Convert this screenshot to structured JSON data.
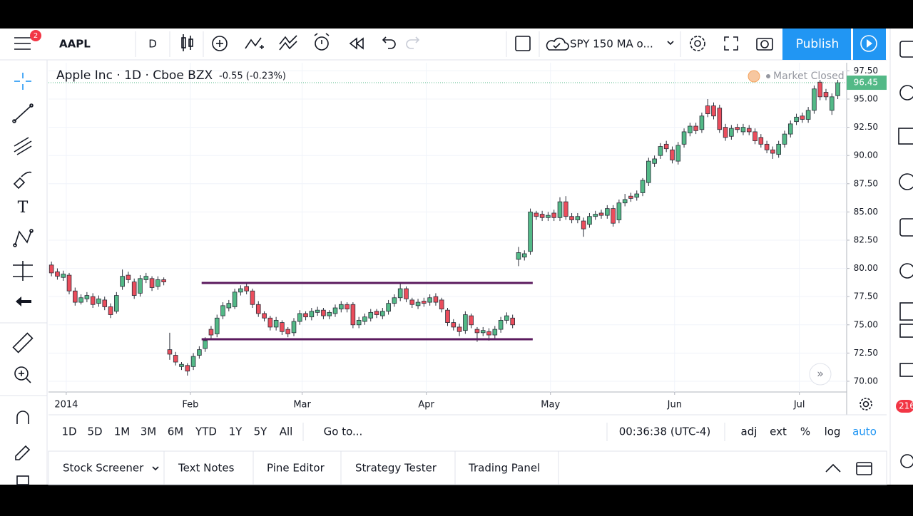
{
  "toolbar": {
    "notification_count": "2",
    "symbol": "AAPL",
    "interval": "D",
    "indicator": "SPY 150 MA o...",
    "publish": "Publish"
  },
  "chart_data": {
    "type": "candlestick",
    "title": "Apple Inc · 1D · Cboe BZX",
    "change": "-0.55 (-0.23%)",
    "status": "Market Closed",
    "last_price": 96.45,
    "up_color": "#53b987",
    "down_color": "#eb4d5c",
    "grid": true,
    "ylim": [
      69.05,
      98.22
    ],
    "yticks": [
      {
        "value": 70,
        "label": "70.00"
      },
      {
        "value": 72.5,
        "label": "72.50"
      },
      {
        "value": 75,
        "label": "75.00"
      },
      {
        "value": 77.5,
        "label": "77.50"
      },
      {
        "value": 80,
        "label": "80.00"
      },
      {
        "value": 82.5,
        "label": "82.50"
      },
      {
        "value": 85,
        "label": "85.00"
      },
      {
        "value": 87.5,
        "label": "87.50"
      },
      {
        "value": 90,
        "label": "90.00"
      },
      {
        "value": 92.5,
        "label": "92.50"
      },
      {
        "value": 95,
        "label": "95.00"
      },
      {
        "value": 97.5,
        "label": "97.50"
      }
    ],
    "xlim": [
      -0.5,
      134.5
    ],
    "xticks": [
      {
        "value": 2.5,
        "label": "2014"
      },
      {
        "value": 23.5,
        "label": "Feb"
      },
      {
        "value": 42.4,
        "label": "Mar"
      },
      {
        "value": 63.4,
        "label": "Apr"
      },
      {
        "value": 84.4,
        "label": "May"
      },
      {
        "value": 105.4,
        "label": "Jun"
      },
      {
        "value": 126.5,
        "label": "Jul"
      }
    ],
    "open": [
      80.3,
      79.7,
      79.2,
      79.4,
      78.0,
      77.0,
      77.3,
      77.5,
      76.9,
      77.2,
      76.6,
      76.2,
      78.4,
      79.4,
      78.8,
      77.8,
      79.0,
      79.1,
      78.4,
      79.0,
      72.8,
      72.3,
      71.3,
      71.4,
      71.3,
      72.3,
      72.9,
      74.6,
      74.2,
      75.8,
      76.5,
      76.6,
      77.9,
      78.4,
      78.0,
      76.8,
      76.0,
      75.6,
      74.8,
      75.2,
      74.6,
      74.3,
      75.3,
      76.0,
      75.7,
      76.1,
      76.3,
      75.8,
      76.0,
      76.4,
      76.8,
      76.8,
      75.0,
      75.3,
      75.6,
      76.2,
      75.8,
      76.2,
      76.9,
      77.4,
      78.2,
      77.2,
      76.7,
      77.1,
      77.0,
      77.5,
      77.2,
      76.3,
      75.2,
      74.8,
      74.5,
      75.8,
      74.6,
      74.3,
      74.4,
      74.1,
      74.6,
      75.4,
      75.6,
      80.8,
      81.0,
      81.5,
      84.9,
      84.8,
      84.5,
      84.9,
      84.5,
      85.9,
      84.6,
      84.3,
      84.2,
      83.9,
      84.6,
      84.9,
      84.7,
      85.3,
      84.3,
      85.8,
      86.4,
      86.3,
      86.7,
      87.6,
      89.3,
      90.0,
      91.0,
      90.5,
      89.5,
      91.0,
      92.0,
      92.6,
      92.3,
      94.4,
      94.4,
      94.2,
      92.5,
      91.7,
      92.5,
      92.1,
      92.4,
      92.1,
      91.6,
      91.0,
      90.5,
      90.1,
      91.0,
      91.9,
      93.0,
      93.5,
      93.2,
      94.0,
      96.5,
      95.6,
      94.0,
      95.3
    ],
    "high": [
      80.6,
      80.0,
      79.8,
      79.6,
      78.3,
      77.7,
      77.9,
      77.8,
      77.6,
      77.5,
      76.9,
      77.9,
      79.9,
      79.7,
      79.1,
      79.4,
      79.6,
      79.3,
      79.3,
      79.2,
      74.3,
      72.6,
      71.7,
      71.6,
      72.5,
      73.1,
      73.9,
      74.9,
      75.9,
      77.0,
      77.2,
      78.2,
      78.5,
      78.8,
      78.2,
      77.1,
      76.2,
      75.8,
      75.7,
      75.4,
      74.8,
      75.6,
      76.3,
      76.2,
      76.5,
      76.6,
      76.5,
      76.3,
      76.8,
      77.1,
      77.0,
      77.0,
      75.7,
      76.0,
      76.4,
      76.4,
      76.5,
      77.2,
      77.7,
      78.7,
      78.4,
      77.4,
      77.3,
      77.4,
      77.7,
      77.8,
      77.4,
      76.5,
      75.5,
      75.1,
      76.2,
      76.0,
      74.8,
      74.8,
      74.7,
      74.9,
      75.7,
      76.1,
      75.9,
      81.9,
      81.6,
      85.3,
      85.1,
      85.1,
      85.0,
      85.2,
      86.3,
      86.4,
      84.9,
      84.9,
      84.5,
      84.9,
      85.1,
      85.2,
      85.6,
      85.6,
      86.1,
      86.6,
      86.7,
      86.9,
      88.0,
      89.8,
      90.0,
      91.1,
      91.3,
      90.8,
      91.2,
      92.4,
      92.9,
      92.9,
      93.8,
      95.0,
      94.7,
      94.5,
      92.8,
      92.7,
      92.8,
      92.8,
      92.7,
      92.4,
      91.9,
      91.3,
      90.8,
      91.3,
      92.2,
      93.1,
      93.7,
      93.8,
      94.3,
      96.2,
      96.7,
      95.9,
      95.5,
      96.7
    ],
    "low": [
      79.3,
      79.0,
      78.9,
      77.7,
      76.7,
      76.8,
      77.0,
      76.5,
      76.6,
      76.3,
      75.6,
      76.0,
      78.1,
      78.7,
      77.3,
      77.5,
      78.7,
      78.0,
      78.1,
      78.5,
      71.9,
      71.4,
      71.0,
      70.5,
      71.0,
      72.0,
      72.6,
      73.8,
      73.9,
      75.5,
      76.2,
      76.4,
      77.6,
      77.7,
      76.5,
      75.7,
      75.3,
      74.5,
      74.5,
      74.1,
      73.9,
      74.0,
      75.0,
      75.4,
      75.4,
      75.8,
      75.5,
      75.5,
      75.7,
      76.1,
      76.1,
      74.7,
      74.7,
      75.0,
      75.3,
      75.6,
      75.5,
      75.9,
      76.6,
      77.1,
      77.0,
      76.5,
      76.4,
      76.6,
      76.7,
      76.7,
      76.1,
      74.9,
      74.5,
      74.0,
      74.2,
      74.7,
      73.5,
      74.0,
      73.6,
      73.8,
      74.3,
      75.1,
      74.7,
      80.2,
      80.7,
      81.2,
      84.3,
      84.2,
      84.2,
      84.2,
      84.2,
      84.3,
      84.0,
      84.0,
      82.8,
      83.6,
      84.3,
      84.4,
      84.4,
      83.7,
      84.0,
      85.5,
      85.9,
      86.0,
      86.4,
      87.3,
      89.0,
      89.7,
      90.3,
      89.3,
      89.2,
      90.7,
      91.7,
      91.9,
      92.0,
      93.4,
      93.2,
      92.0,
      91.3,
      91.4,
      92.0,
      91.8,
      91.8,
      91.0,
      90.7,
      90.2,
      89.7,
      89.8,
      90.7,
      91.6,
      92.7,
      92.9,
      92.9,
      93.7,
      94.9,
      94.9,
      93.6,
      95.0
    ],
    "close": [
      79.6,
      79.3,
      79.5,
      78.0,
      77.0,
      77.4,
      77.6,
      76.8,
      77.3,
      76.6,
      75.9,
      77.6,
      79.3,
      79.0,
      77.6,
      79.1,
      79.3,
      78.3,
      79.0,
      78.8,
      72.4,
      71.7,
      71.5,
      70.9,
      72.2,
      72.8,
      73.6,
      74.1,
      75.6,
      76.7,
      76.9,
      77.9,
      78.2,
      78.0,
      76.8,
      76.0,
      75.6,
      74.8,
      75.4,
      74.4,
      74.2,
      75.3,
      76.0,
      75.7,
      76.2,
      76.3,
      75.8,
      76.1,
      76.5,
      76.8,
      76.4,
      75.0,
      75.4,
      75.7,
      76.1,
      75.9,
      76.2,
      76.9,
      77.4,
      78.2,
      77.3,
      76.8,
      77.0,
      76.9,
      77.4,
      77.0,
      76.4,
      75.2,
      74.8,
      74.4,
      75.9,
      75.0,
      74.3,
      74.5,
      74.1,
      74.6,
      75.4,
      75.8,
      75.0,
      81.4,
      81.3,
      85.0,
      84.6,
      84.5,
      84.7,
      84.5,
      85.9,
      84.6,
      84.3,
      84.6,
      83.5,
      84.6,
      84.8,
      84.7,
      85.3,
      84.0,
      85.8,
      86.1,
      86.2,
      86.6,
      87.8,
      89.5,
      89.7,
      90.8,
      90.6,
      89.6,
      90.9,
      92.1,
      92.6,
      92.2,
      93.5,
      93.7,
      93.5,
      92.3,
      91.6,
      92.4,
      92.3,
      92.5,
      92.1,
      91.3,
      91.0,
      90.5,
      90.2,
      91.0,
      91.9,
      92.8,
      93.4,
      93.2,
      94.0,
      95.9,
      95.2,
      95.2,
      95.2,
      96.45
    ],
    "horizontal_lines": [
      {
        "value": 78.71,
        "xlim": [
          25.4,
          81.4
        ],
        "color": "#5b1a5e"
      },
      {
        "value": 73.72,
        "xlim": [
          25.4,
          81.4
        ],
        "color": "#5b1a5e"
      }
    ]
  },
  "range_bar": {
    "buttons": [
      "1D",
      "5D",
      "1M",
      "3M",
      "6M",
      "YTD",
      "1Y",
      "5Y",
      "All"
    ],
    "goto": "Go to...",
    "time": "00:36:38 (UTC-4)",
    "options": [
      "adj",
      "ext",
      "%",
      "log",
      "auto"
    ]
  },
  "bottom_panel": {
    "tabs": [
      "Stock Screener",
      "Text Notes",
      "Pine Editor",
      "Strategy Tester",
      "Trading Panel"
    ]
  },
  "side_badge": "216"
}
